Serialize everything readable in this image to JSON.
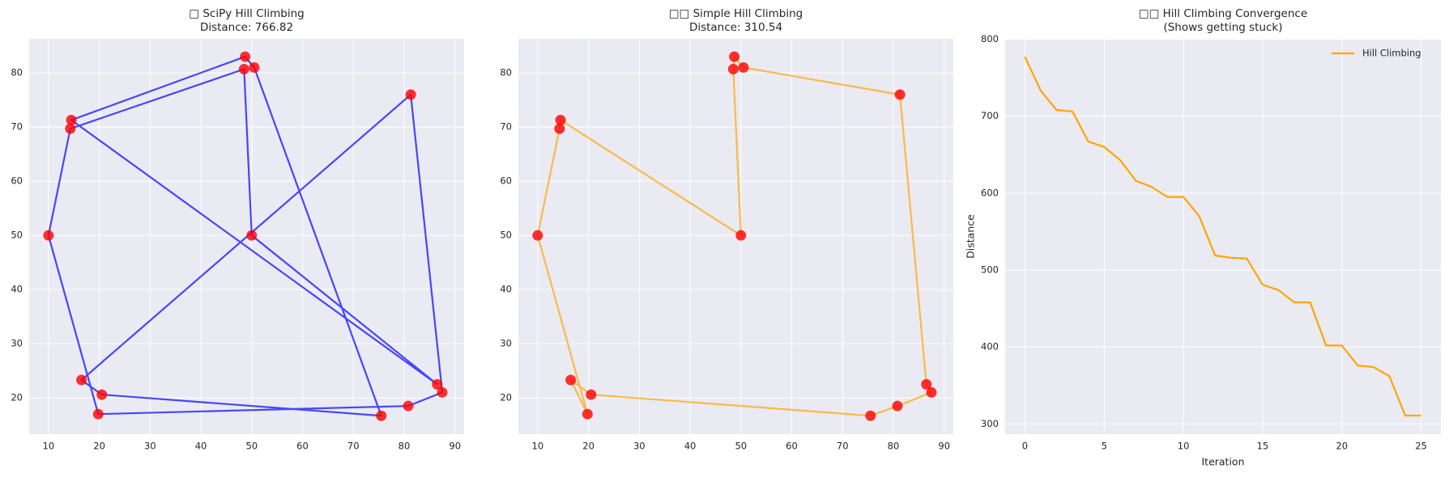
{
  "chart_data": [
    {
      "type": "line",
      "title": "□ SciPy Hill Climbing",
      "subtitle": "Distance: 766.82",
      "x": [
        10,
        14.3,
        48.5,
        50,
        86.5,
        14.5,
        48.7,
        50.5,
        75.5,
        20.5,
        16.5,
        81.3,
        87.5,
        80.8,
        19.8,
        10
      ],
      "values": [
        50,
        69.7,
        80.7,
        50,
        22.5,
        71.3,
        83,
        81,
        16.7,
        20.6,
        23.3,
        76,
        21,
        18.5,
        17,
        50
      ],
      "color": "#0000ff",
      "marker_color": "#ff0000",
      "xlim": [
        6.2,
        91.8
      ],
      "xticks": [
        10,
        20,
        30,
        40,
        50,
        60,
        70,
        80,
        90
      ],
      "ylim": [
        13.3,
        86.3
      ],
      "yticks": [
        20,
        30,
        40,
        50,
        60,
        70,
        80
      ],
      "grid": true
    },
    {
      "type": "line",
      "title": "□□ Simple Hill Climbing",
      "subtitle": "Distance: 310.54",
      "x": [
        10,
        14.3,
        14.5,
        50,
        48.5,
        48.7,
        50.5,
        81.3,
        86.5,
        87.5,
        80.8,
        75.5,
        20.5,
        16.5,
        19.8,
        10
      ],
      "values": [
        50,
        69.7,
        71.3,
        50,
        80.7,
        83,
        81,
        76,
        22.5,
        21,
        18.5,
        16.7,
        20.6,
        23.3,
        17,
        50
      ],
      "color": "#ffa500",
      "marker_color": "#ff0000",
      "xlim": [
        6.2,
        91.8
      ],
      "xticks": [
        10,
        20,
        30,
        40,
        50,
        60,
        70,
        80,
        90
      ],
      "ylim": [
        13.3,
        86.3
      ],
      "yticks": [
        20,
        30,
        40,
        50,
        60,
        70,
        80
      ],
      "grid": true
    },
    {
      "type": "line",
      "title": "□□ Hill Climbing Convergence",
      "subtitle": "(Shows getting stuck)",
      "xlabel": "Iteration",
      "ylabel": "Distance",
      "x": [
        0,
        1,
        2,
        3,
        4,
        5,
        6,
        7,
        8,
        9,
        10,
        11,
        12,
        13,
        14,
        15,
        16,
        17,
        18,
        19,
        20,
        21,
        22,
        23,
        24,
        25
      ],
      "series": [
        {
          "name": "Hill Climbing",
          "color": "#ffa500",
          "values": [
            777,
            733,
            708,
            706,
            667,
            660,
            643,
            616,
            608,
            595,
            595,
            570,
            519,
            516,
            515,
            481,
            474,
            458,
            458,
            402,
            402,
            376,
            374,
            362,
            311,
            311
          ]
        }
      ],
      "xlim": [
        -1.25,
        26.25
      ],
      "xticks": [
        0,
        5,
        10,
        15,
        20,
        25
      ],
      "ylim": [
        286.8,
        800.5
      ],
      "yticks": [
        300,
        400,
        500,
        600,
        700,
        800
      ],
      "grid": true,
      "legend": "upper right"
    }
  ]
}
